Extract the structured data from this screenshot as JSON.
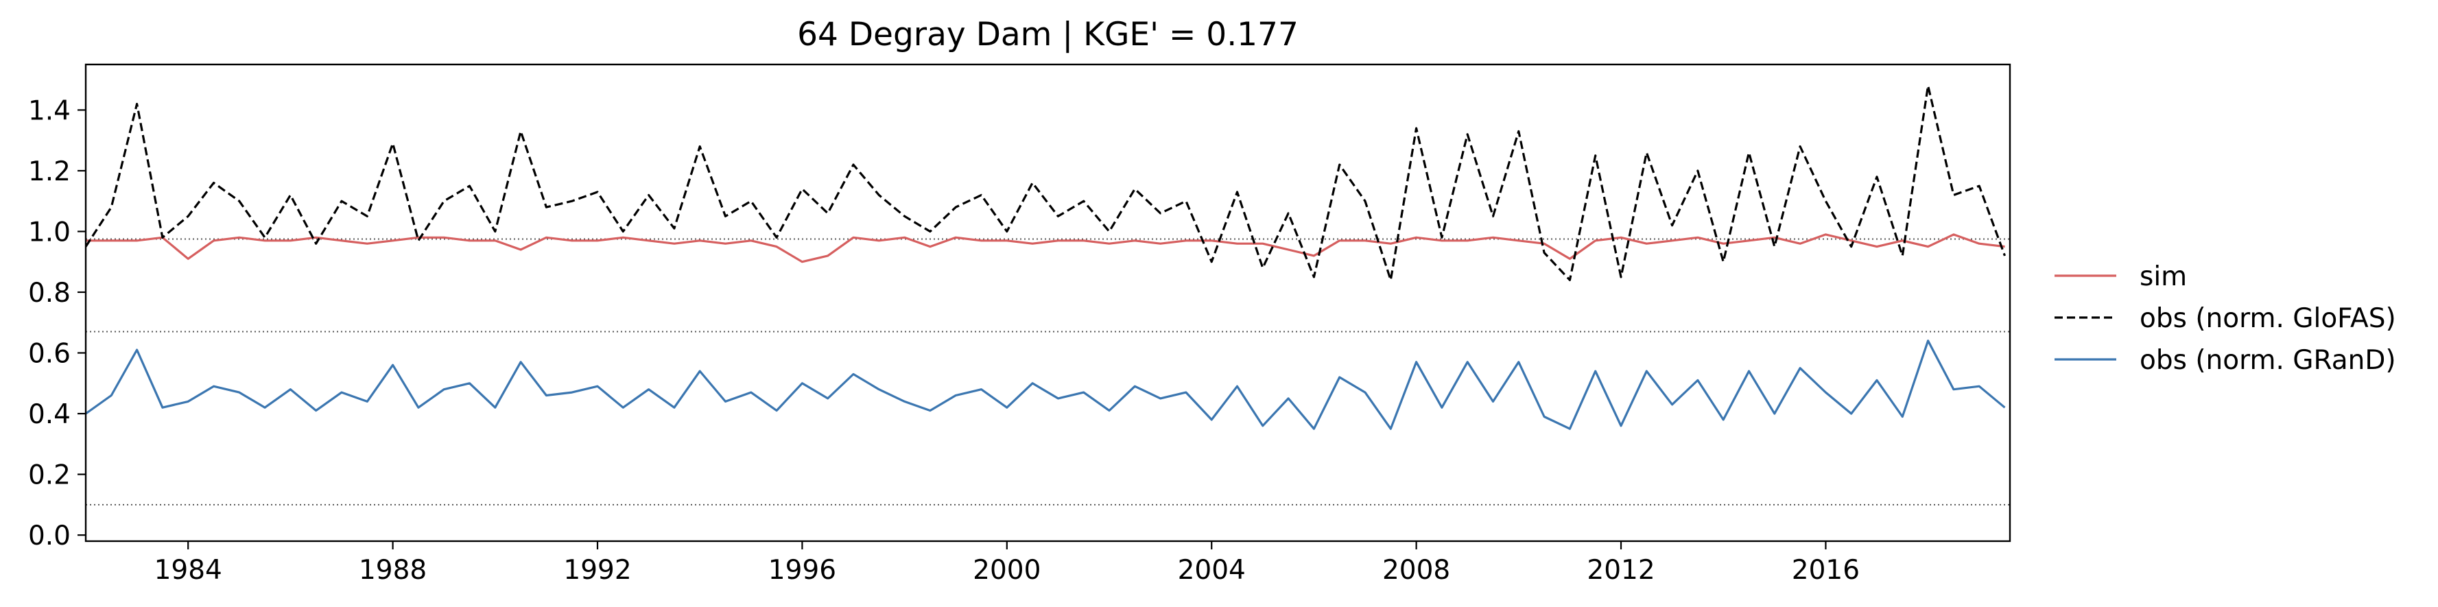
{
  "chart_data": {
    "type": "line",
    "title": "64  Degray Dam | KGE' = 0.177",
    "xlabel": "",
    "ylabel": "",
    "xlim": [
      1982.0,
      2019.6
    ],
    "ylim": [
      -0.02,
      1.55
    ],
    "x_ticks": [
      1984,
      1988,
      1992,
      1996,
      2000,
      2004,
      2008,
      2012,
      2016
    ],
    "x_tick_labels": [
      "1984",
      "1988",
      "1992",
      "1996",
      "2000",
      "2004",
      "2008",
      "2012",
      "2016"
    ],
    "y_ticks": [
      0.0,
      0.2,
      0.4,
      0.6,
      0.8,
      1.0,
      1.2,
      1.4
    ],
    "y_tick_labels": [
      "0.0",
      "0.2",
      "0.4",
      "0.6",
      "0.8",
      "1.0",
      "1.2",
      "1.4"
    ],
    "reference_lines": [
      {
        "y": 0.975,
        "style": "dotted",
        "color": "#555555"
      },
      {
        "y": 0.67,
        "style": "dotted",
        "color": "#555555"
      },
      {
        "y": 0.1,
        "style": "dotted",
        "color": "#555555"
      }
    ],
    "legend_position": "right",
    "grid": false,
    "series": [
      {
        "name": "sim",
        "color": "#d65f5f",
        "style": "solid",
        "x": [
          1982.0,
          1982.5,
          1983.0,
          1983.5,
          1984.0,
          1984.5,
          1985.0,
          1985.5,
          1986.0,
          1986.5,
          1987.0,
          1987.5,
          1988.0,
          1988.5,
          1989.0,
          1989.5,
          1990.0,
          1990.5,
          1991.0,
          1991.5,
          1992.0,
          1992.5,
          1993.0,
          1993.5,
          1994.0,
          1994.5,
          1995.0,
          1995.5,
          1996.0,
          1996.5,
          1997.0,
          1997.5,
          1998.0,
          1998.5,
          1999.0,
          1999.5,
          2000.0,
          2000.5,
          2001.0,
          2001.5,
          2002.0,
          2002.5,
          2003.0,
          2003.5,
          2004.0,
          2004.5,
          2005.0,
          2005.5,
          2006.0,
          2006.5,
          2007.0,
          2007.5,
          2008.0,
          2008.5,
          2009.0,
          2009.5,
          2010.0,
          2010.5,
          2011.0,
          2011.5,
          2012.0,
          2012.5,
          2013.0,
          2013.5,
          2014.0,
          2014.5,
          2015.0,
          2015.5,
          2016.0,
          2016.5,
          2017.0,
          2017.5,
          2018.0,
          2018.5,
          2019.0,
          2019.5
        ],
        "y": [
          0.97,
          0.97,
          0.97,
          0.98,
          0.91,
          0.97,
          0.98,
          0.97,
          0.97,
          0.98,
          0.97,
          0.96,
          0.97,
          0.98,
          0.98,
          0.97,
          0.97,
          0.94,
          0.98,
          0.97,
          0.97,
          0.98,
          0.97,
          0.96,
          0.97,
          0.96,
          0.97,
          0.95,
          0.9,
          0.92,
          0.98,
          0.97,
          0.98,
          0.95,
          0.98,
          0.97,
          0.97,
          0.96,
          0.97,
          0.97,
          0.96,
          0.97,
          0.96,
          0.97,
          0.97,
          0.96,
          0.96,
          0.94,
          0.92,
          0.97,
          0.97,
          0.96,
          0.98,
          0.97,
          0.97,
          0.98,
          0.97,
          0.96,
          0.91,
          0.97,
          0.98,
          0.96,
          0.97,
          0.98,
          0.96,
          0.97,
          0.98,
          0.96,
          0.99,
          0.97,
          0.95,
          0.97,
          0.95,
          0.99,
          0.96,
          0.95
        ]
      },
      {
        "name": "obs (norm. GloFAS)",
        "color": "#000000",
        "style": "dashed",
        "x": [
          1982.0,
          1982.5,
          1983.0,
          1983.5,
          1984.0,
          1984.5,
          1985.0,
          1985.5,
          1986.0,
          1986.5,
          1987.0,
          1987.5,
          1988.0,
          1988.5,
          1989.0,
          1989.5,
          1990.0,
          1990.5,
          1991.0,
          1991.5,
          1992.0,
          1992.5,
          1993.0,
          1993.5,
          1994.0,
          1994.5,
          1995.0,
          1995.5,
          1996.0,
          1996.5,
          1997.0,
          1997.5,
          1998.0,
          1998.5,
          1999.0,
          1999.5,
          2000.0,
          2000.5,
          2001.0,
          2001.5,
          2002.0,
          2002.5,
          2003.0,
          2003.5,
          2004.0,
          2004.5,
          2005.0,
          2005.5,
          2006.0,
          2006.5,
          2007.0,
          2007.5,
          2008.0,
          2008.5,
          2009.0,
          2009.5,
          2010.0,
          2010.5,
          2011.0,
          2011.5,
          2012.0,
          2012.5,
          2013.0,
          2013.5,
          2014.0,
          2014.5,
          2015.0,
          2015.5,
          2016.0,
          2016.5,
          2017.0,
          2017.5,
          2018.0,
          2018.5,
          2019.0,
          2019.5
        ],
        "y": [
          0.95,
          1.08,
          1.42,
          0.98,
          1.05,
          1.16,
          1.1,
          0.98,
          1.12,
          0.96,
          1.1,
          1.05,
          1.29,
          0.97,
          1.1,
          1.15,
          1.0,
          1.33,
          1.08,
          1.1,
          1.13,
          1.0,
          1.12,
          1.01,
          1.28,
          1.05,
          1.1,
          0.98,
          1.14,
          1.06,
          1.22,
          1.12,
          1.05,
          1.0,
          1.08,
          1.12,
          1.0,
          1.16,
          1.05,
          1.1,
          1.0,
          1.14,
          1.06,
          1.1,
          0.9,
          1.13,
          0.88,
          1.06,
          0.85,
          1.22,
          1.1,
          0.84,
          1.34,
          0.98,
          1.32,
          1.05,
          1.33,
          0.93,
          0.84,
          1.25,
          0.85,
          1.26,
          1.02,
          1.2,
          0.9,
          1.26,
          0.95,
          1.28,
          1.1,
          0.95,
          1.18,
          0.92,
          1.48,
          1.12,
          1.15,
          0.92
        ]
      },
      {
        "name": "obs (norm. GRanD)",
        "color": "#3b76b0",
        "style": "solid",
        "x": [
          1982.0,
          1982.5,
          1983.0,
          1983.5,
          1984.0,
          1984.5,
          1985.0,
          1985.5,
          1986.0,
          1986.5,
          1987.0,
          1987.5,
          1988.0,
          1988.5,
          1989.0,
          1989.5,
          1990.0,
          1990.5,
          1991.0,
          1991.5,
          1992.0,
          1992.5,
          1993.0,
          1993.5,
          1994.0,
          1994.5,
          1995.0,
          1995.5,
          1996.0,
          1996.5,
          1997.0,
          1997.5,
          1998.0,
          1998.5,
          1999.0,
          1999.5,
          2000.0,
          2000.5,
          2001.0,
          2001.5,
          2002.0,
          2002.5,
          2003.0,
          2003.5,
          2004.0,
          2004.5,
          2005.0,
          2005.5,
          2006.0,
          2006.5,
          2007.0,
          2007.5,
          2008.0,
          2008.5,
          2009.0,
          2009.5,
          2010.0,
          2010.5,
          2011.0,
          2011.5,
          2012.0,
          2012.5,
          2013.0,
          2013.5,
          2014.0,
          2014.5,
          2015.0,
          2015.5,
          2016.0,
          2016.5,
          2017.0,
          2017.5,
          2018.0,
          2018.5,
          2019.0,
          2019.5
        ],
        "y": [
          0.4,
          0.46,
          0.61,
          0.42,
          0.44,
          0.49,
          0.47,
          0.42,
          0.48,
          0.41,
          0.47,
          0.44,
          0.56,
          0.42,
          0.48,
          0.5,
          0.42,
          0.57,
          0.46,
          0.47,
          0.49,
          0.42,
          0.48,
          0.42,
          0.54,
          0.44,
          0.47,
          0.41,
          0.5,
          0.45,
          0.53,
          0.48,
          0.44,
          0.41,
          0.46,
          0.48,
          0.42,
          0.5,
          0.45,
          0.47,
          0.41,
          0.49,
          0.45,
          0.47,
          0.38,
          0.49,
          0.36,
          0.45,
          0.35,
          0.52,
          0.47,
          0.35,
          0.57,
          0.42,
          0.57,
          0.44,
          0.57,
          0.39,
          0.35,
          0.54,
          0.36,
          0.54,
          0.43,
          0.51,
          0.38,
          0.54,
          0.4,
          0.55,
          0.47,
          0.4,
          0.51,
          0.39,
          0.64,
          0.48,
          0.49,
          0.42
        ]
      }
    ]
  }
}
